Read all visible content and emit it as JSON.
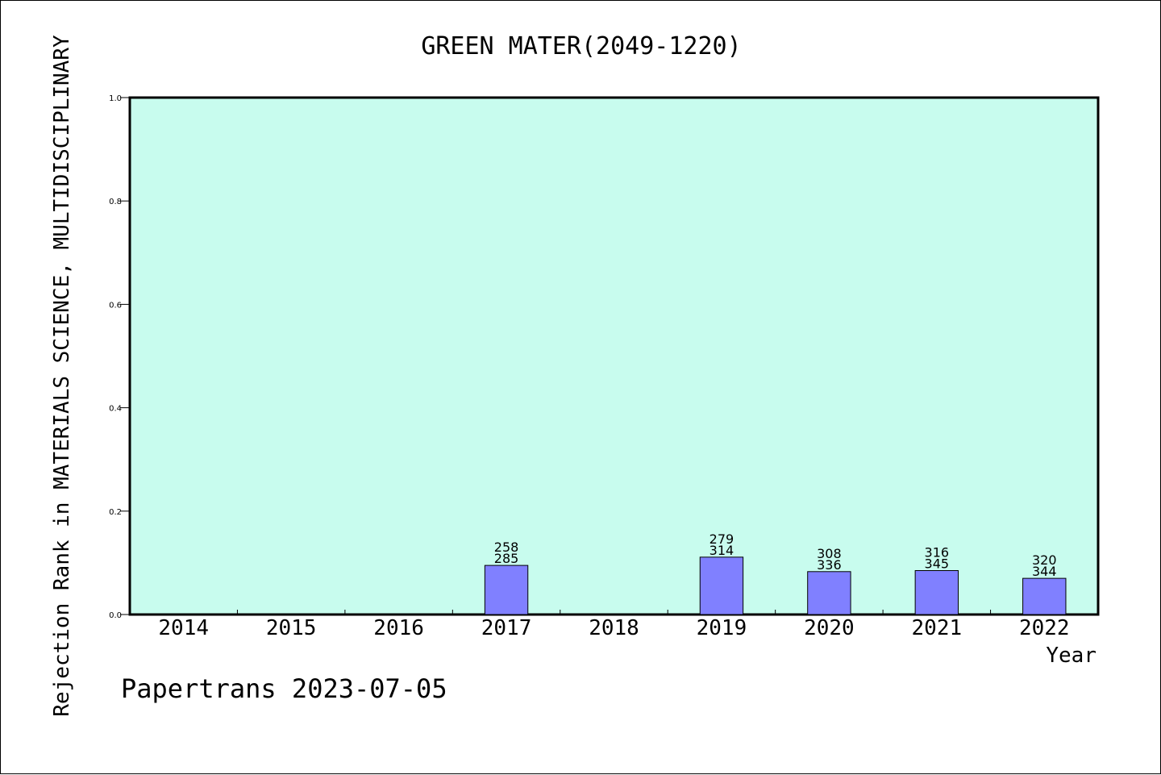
{
  "chart_data": {
    "type": "bar",
    "title": "GREEN MATER(2049-1220)",
    "xlabel": "Year",
    "ylabel": "Rejection Rank in MATERIALS SCIENCE, MULTIDISCIPLINARY",
    "footer": "Papertrans 2023-07-05",
    "categories": [
      "2014",
      "2015",
      "2016",
      "2017",
      "2018",
      "2019",
      "2020",
      "2021",
      "2022"
    ],
    "values": [
      null,
      null,
      null,
      0.095,
      null,
      0.111,
      0.083,
      0.085,
      0.07
    ],
    "labels_top": [
      "",
      "",
      "",
      "258",
      "",
      "279",
      "308",
      "316",
      "320"
    ],
    "labels_bottom": [
      "",
      "",
      "",
      "285",
      "",
      "314",
      "336",
      "345",
      "344"
    ],
    "ylim": [
      0,
      1.0
    ],
    "yticks": [
      "0.0",
      "0.2",
      "0.4",
      "0.6",
      "0.8",
      "1.0"
    ],
    "grid": false,
    "colors": {
      "plot_background": "#c8fcee",
      "bar_fill": "#8080ff",
      "bar_stroke": "#000000"
    }
  }
}
